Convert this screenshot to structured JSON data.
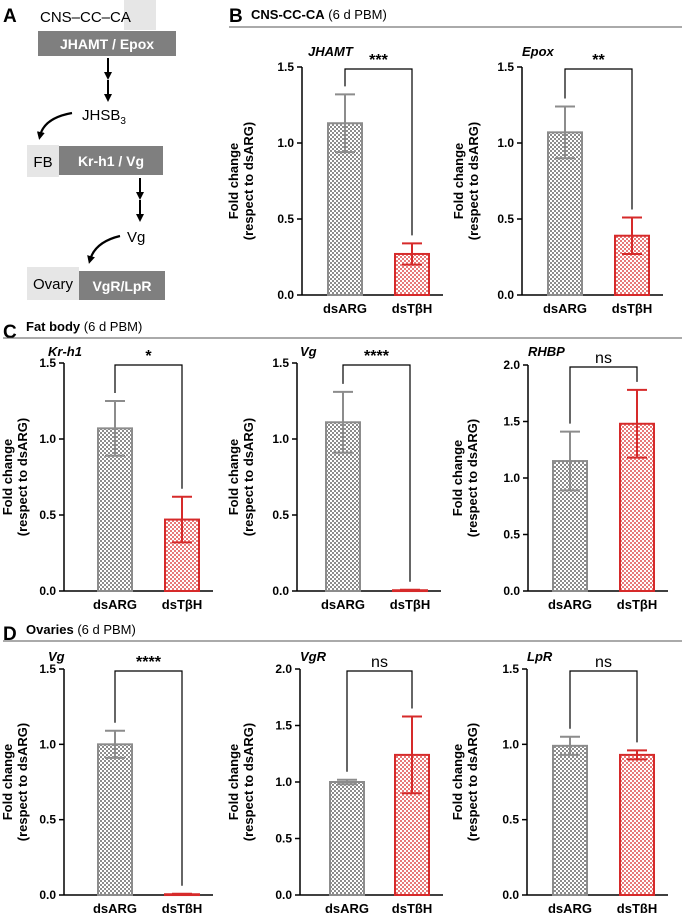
{
  "colors": {
    "control": "#8c8c8c",
    "treatment": "#d62a2a",
    "box_dark": "#7f7f7f",
    "box_light": "#e6e6e6",
    "rule": "#555555"
  },
  "panels": [
    {
      "letter": "A",
      "title": "",
      "subtitle": ""
    },
    {
      "letter": "B",
      "title": "CNS-CC-CA",
      "subtitle": "(6 d PBM)"
    },
    {
      "letter": "C",
      "title": "Fat body",
      "subtitle": "(6 d PBM)"
    },
    {
      "letter": "D",
      "title": "Ovaries",
      "subtitle": "(6 d PBM)"
    }
  ],
  "schematic": {
    "cns_label": "CNS–CC–CA",
    "box1_label": "JHAMT / Epox",
    "jhsb_label": "JHSB",
    "jhsb_sub": "3",
    "fb_label": "FB",
    "box2_label": "Kr-h1 / Vg",
    "vg_label": "Vg",
    "ovary_label": "Ovary",
    "box3_label": "VgR/LpR"
  },
  "chart_data": [
    {
      "type": "bar",
      "panel": "B",
      "title": "JHAMT",
      "ylabel": "Fold change\n(respect to dsARG)",
      "categories": [
        "dsARG",
        "dsTβH"
      ],
      "values": [
        1.13,
        0.27
      ],
      "error": [
        0.19,
        0.07
      ],
      "ylim": [
        0,
        1.5
      ],
      "yticks": [
        "0.0",
        "0.5",
        "1.0",
        "1.5"
      ],
      "significance": "***"
    },
    {
      "type": "bar",
      "panel": "B",
      "title": "Epox",
      "ylabel": "Fold change\n(respect to dsARG)",
      "categories": [
        "dsARG",
        "dsTβH"
      ],
      "values": [
        1.07,
        0.39
      ],
      "error": [
        0.17,
        0.12
      ],
      "ylim": [
        0,
        1.5
      ],
      "yticks": [
        "0.0",
        "0.5",
        "1.0",
        "1.5"
      ],
      "significance": "**"
    },
    {
      "type": "bar",
      "panel": "C",
      "title": "Kr-h1",
      "ylabel": "Fold change\n(respect to dsARG)",
      "categories": [
        "dsARG",
        "dsTβH"
      ],
      "values": [
        1.07,
        0.47
      ],
      "error": [
        0.18,
        0.15
      ],
      "ylim": [
        0,
        1.5
      ],
      "yticks": [
        "0.0",
        "0.5",
        "1.0",
        "1.5"
      ],
      "significance": "*"
    },
    {
      "type": "bar",
      "panel": "C",
      "title": "Vg",
      "ylabel": "Fold change\n(respect to dsARG)",
      "categories": [
        "dsARG",
        "dsTβH"
      ],
      "values": [
        1.11,
        0.005
      ],
      "error": [
        0.2,
        0.003
      ],
      "ylim": [
        0,
        1.5
      ],
      "yticks": [
        "0.0",
        "0.5",
        "1.0",
        "1.5"
      ],
      "significance": "****"
    },
    {
      "type": "bar",
      "panel": "C",
      "title": "RHBP",
      "ylabel": "Fold change\n(respect to dsARG)",
      "categories": [
        "dsARG",
        "dsTβH"
      ],
      "values": [
        1.15,
        1.48
      ],
      "error": [
        0.26,
        0.3
      ],
      "ylim": [
        0,
        2.0
      ],
      "yticks": [
        "0.0",
        "0.5",
        "1.0",
        "1.5",
        "2.0"
      ],
      "significance": "ns"
    },
    {
      "type": "bar",
      "panel": "D",
      "title": "Vg",
      "ylabel": "Fold change\n(respect to dsARG)",
      "categories": [
        "dsARG",
        "dsTβH"
      ],
      "values": [
        1.0,
        0.005
      ],
      "error": [
        0.09,
        0.003
      ],
      "ylim": [
        0,
        1.5
      ],
      "yticks": [
        "0.0",
        "0.5",
        "1.0",
        "1.5"
      ],
      "significance": "****"
    },
    {
      "type": "bar",
      "panel": "D",
      "title": "VgR",
      "ylabel": "Fold change\n(respect to dsARG)",
      "categories": [
        "dsARG",
        "dsTβH"
      ],
      "values": [
        1.0,
        1.24
      ],
      "error": [
        0.02,
        0.34
      ],
      "ylim": [
        0,
        2.0
      ],
      "yticks": [
        "0.0",
        "0.5",
        "1.0",
        "1.5",
        "2.0"
      ],
      "significance": "ns"
    },
    {
      "type": "bar",
      "panel": "D",
      "title": "LpR",
      "ylabel": "Fold change\n(respect to dsARG)",
      "categories": [
        "dsARG",
        "dsTβH"
      ],
      "values": [
        0.99,
        0.93
      ],
      "error": [
        0.06,
        0.03
      ],
      "ylim": [
        0,
        1.5
      ],
      "yticks": [
        "0.0",
        "0.5",
        "1.0",
        "1.5"
      ],
      "significance": "ns"
    }
  ]
}
